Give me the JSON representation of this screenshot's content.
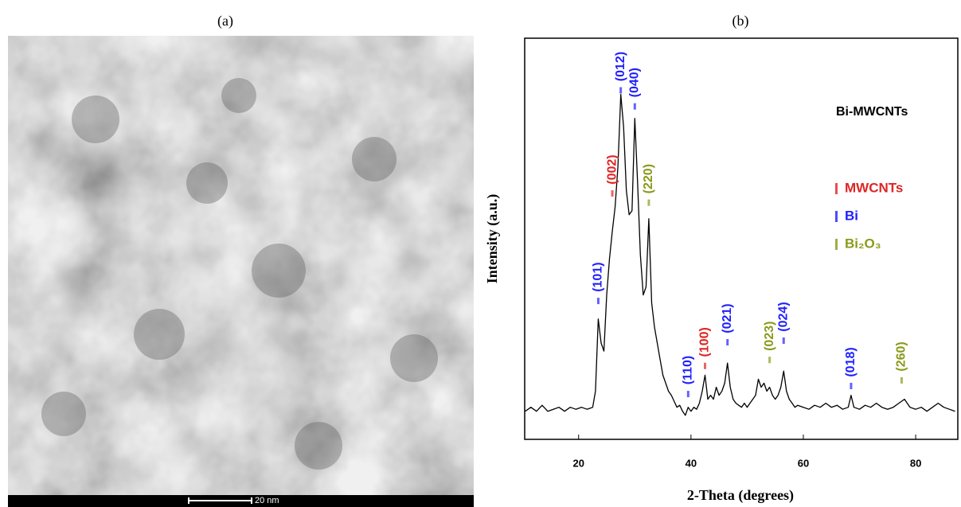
{
  "panel_a": {
    "label": "(a)",
    "scale_bar": "20 nm"
  },
  "chart_data": {
    "type": "line",
    "title": "(b)",
    "x_label": "2-Theta (degrees)",
    "y_label": "Intensity (a.u.)",
    "xlim": [
      10.4,
      87.5
    ],
    "xticks": [
      20,
      40,
      60,
      80
    ],
    "ylim": [
      0,
      100
    ],
    "x": [
      10.5,
      11.5,
      12.5,
      13.5,
      14.5,
      15.5,
      16.5,
      17.5,
      18.5,
      19.5,
      20.5,
      21.5,
      22.5,
      23,
      23.5,
      24,
      24.5,
      25,
      25.5,
      26,
      26.5,
      27,
      27.5,
      28,
      28.5,
      29,
      29.5,
      30,
      30.5,
      31,
      31.5,
      32,
      32.5,
      33,
      33.5,
      34,
      34.5,
      35,
      35.5,
      36,
      36.5,
      37,
      37.5,
      38,
      38.5,
      39,
      39.5,
      40,
      40.5,
      41,
      41.5,
      42,
      42.5,
      43,
      43.5,
      44,
      44.5,
      45,
      45.5,
      46,
      46.5,
      47,
      47.5,
      48,
      48.5,
      49,
      49.5,
      50,
      50.5,
      51,
      51.5,
      52,
      52.5,
      53,
      53.5,
      54,
      54.5,
      55,
      55.5,
      56,
      56.5,
      57,
      57.5,
      58,
      58.5,
      59,
      60,
      61,
      62,
      63,
      64,
      65,
      66,
      67,
      68,
      68.5,
      69,
      70,
      71,
      72,
      73,
      74,
      75,
      76,
      77,
      78,
      79,
      80,
      81,
      82,
      83,
      84,
      85,
      86,
      87
    ],
    "series": [
      {
        "name": "Bi-MWCNTs",
        "color": "#000000",
        "values": [
          7,
          8,
          7,
          8.5,
          7,
          7.5,
          8,
          7,
          8,
          7.5,
          8,
          7.5,
          8,
          12,
          30,
          24,
          22,
          36,
          45,
          52,
          58,
          68,
          86,
          78,
          62,
          56,
          57,
          80,
          64,
          46,
          36,
          38,
          55,
          34,
          28,
          24,
          20,
          16,
          14,
          12,
          11,
          9.5,
          8,
          8.5,
          7,
          6,
          8,
          7,
          8,
          7.5,
          9,
          12,
          16,
          10,
          11,
          10,
          13,
          11,
          12,
          14,
          19,
          13,
          10,
          9,
          8.5,
          8,
          9,
          8,
          9,
          10,
          11,
          15,
          13,
          14,
          12,
          13,
          11,
          10,
          11,
          13,
          17,
          12,
          10,
          9,
          8,
          8.5,
          8,
          7.5,
          8.5,
          8,
          9,
          8,
          8.5,
          7.5,
          8,
          11,
          8,
          7.5,
          8.5,
          8,
          9,
          8,
          7.5,
          8,
          9,
          10,
          8,
          7.5,
          8,
          7,
          8,
          9,
          8,
          7.5,
          7
        ]
      }
    ],
    "legend": [
      {
        "name": "MWCNTs",
        "color": "#e02424"
      },
      {
        "name": "Bi",
        "color": "#1f1fff"
      },
      {
        "name": "Bi₂O₃",
        "color": "#8a9a1a"
      }
    ],
    "annotations": [
      {
        "label": "(101)",
        "x": 23.5,
        "y": 34.5,
        "color": "#1f1fff"
      },
      {
        "label": "(002)",
        "x": 26,
        "y": 61.3,
        "color": "#e02424"
      },
      {
        "label": "(012)",
        "x": 27.5,
        "y": 87,
        "color": "#1f1fff"
      },
      {
        "label": "(040)",
        "x": 30,
        "y": 83,
        "color": "#1f1fff"
      },
      {
        "label": "(220)",
        "x": 32.5,
        "y": 59,
        "color": "#8a9a1a"
      },
      {
        "label": "(110)",
        "x": 39.5,
        "y": 11.3,
        "color": "#1f1fff"
      },
      {
        "label": "(100)",
        "x": 42.5,
        "y": 18.3,
        "color": "#e02424"
      },
      {
        "label": "(021)",
        "x": 46.5,
        "y": 24.2,
        "color": "#1f1fff"
      },
      {
        "label": "(023)",
        "x": 54,
        "y": 19.8,
        "color": "#8a9a1a"
      },
      {
        "label": "(024)",
        "x": 56.5,
        "y": 24.6,
        "color": "#1f1fff"
      },
      {
        "label": "(018)",
        "x": 68.5,
        "y": 13.3,
        "color": "#1f1fff"
      },
      {
        "label": "(260)",
        "x": 77.5,
        "y": 14.7,
        "color": "#8a9a1a"
      }
    ]
  }
}
